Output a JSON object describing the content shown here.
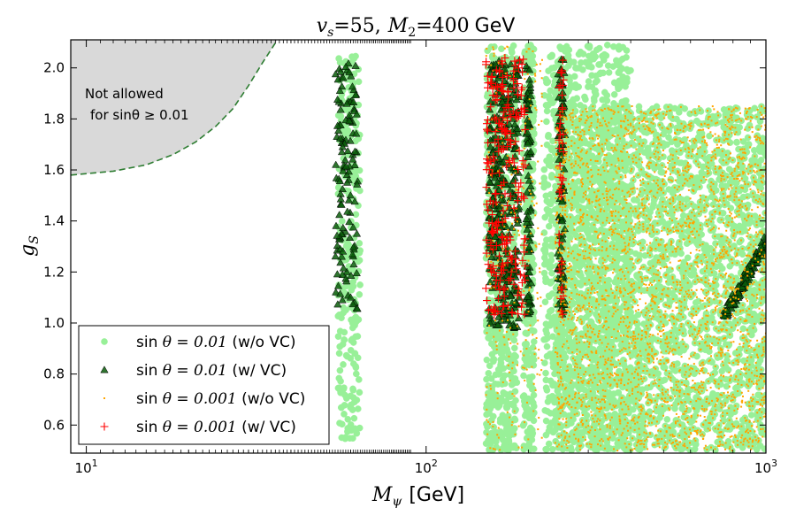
{
  "chart_data": {
    "type": "scatter",
    "title": "v_s = 55,  M_2 = 400 GeV",
    "title_parts": {
      "vs_label": "v",
      "vs_sub": "s",
      "vs_value": "=55,",
      "m2_label": "M",
      "m2_sub": "2",
      "m2_value": "=400",
      "m2_unit": "GeV"
    },
    "xlabel": "M_ψ [GeV]",
    "xlabel_parts": {
      "symbol": "M",
      "sub": "ψ",
      "unit": "[GeV]"
    },
    "ylabel": "g_S",
    "ylabel_parts": {
      "symbol": "g",
      "sub": "S"
    },
    "xscale": "log",
    "xlim": [
      9,
      1000
    ],
    "ylim": [
      0.49,
      2.11
    ],
    "xticks": [
      {
        "value": 10,
        "base": "10",
        "exp": "1"
      },
      {
        "value": 100,
        "base": "10",
        "exp": "2"
      },
      {
        "value": 1000,
        "base": "10",
        "exp": "3"
      }
    ],
    "yticks": [
      0.6,
      0.8,
      1.0,
      1.2,
      1.4,
      1.6,
      1.8,
      2.0
    ],
    "ytick_labels": [
      "0.6",
      "0.8",
      "1.0",
      "1.2",
      "1.4",
      "1.6",
      "1.8",
      "2.0"
    ],
    "excluded_region": {
      "label_line1": "Not allowed",
      "label_line2": "for sinθ ≥ 0.01",
      "boundary_x": [
        9,
        12,
        15,
        18,
        21,
        24,
        27,
        30,
        33,
        36.5
      ],
      "boundary_y": [
        1.58,
        1.595,
        1.62,
        1.66,
        1.71,
        1.77,
        1.84,
        1.93,
        2.02,
        2.11
      ],
      "fill": "#d9d9d9",
      "edge_color": "#2e7d32"
    },
    "series": [
      {
        "name": "sin θ = 0.01 (w/o VC)",
        "marker": "circle",
        "color": "#98f098",
        "clusters": [
          {
            "xmin": 55,
            "xmax": 64,
            "ymin": 0.54,
            "ymax": 2.05,
            "n": 260
          },
          {
            "xmin": 150,
            "xmax": 185,
            "ymin": 0.5,
            "ymax": 2.09,
            "n": 650
          },
          {
            "xmin": 193,
            "xmax": 208,
            "ymin": 0.5,
            "ymax": 2.09,
            "n": 320
          },
          {
            "xmin": 222,
            "xmax": 400,
            "ymin": 0.5,
            "ymax": 2.09,
            "n": 1100
          },
          {
            "xmin": 240,
            "xmax": 1000,
            "ymin": 0.5,
            "ymax": 1.85,
            "n": 2900
          }
        ]
      },
      {
        "name": "sin θ = 0.01 (w/ VC)",
        "marker": "triangle",
        "color": "#0a5d0a",
        "clusters": [
          {
            "xmin": 54,
            "xmax": 63,
            "ymin": 1.05,
            "ymax": 2.04,
            "n": 130
          },
          {
            "xmin": 153,
            "xmax": 188,
            "ymin": 0.98,
            "ymax": 2.04,
            "n": 340
          },
          {
            "xmin": 197,
            "xmax": 204,
            "ymin": 1.02,
            "ymax": 2.04,
            "n": 90
          },
          {
            "xmin": 244,
            "xmax": 256,
            "ymin": 1.02,
            "ymax": 2.04,
            "n": 90
          }
        ],
        "band": {
          "x_start": 750,
          "x_end": 1000,
          "y_start": 1.02,
          "y_end": 1.32,
          "n": 110
        }
      },
      {
        "name": "sin θ = 0.001 (w/o VC)",
        "marker": "dot",
        "color": "#ffa500",
        "clusters": [
          {
            "xmin": 150,
            "xmax": 220,
            "ymin": 0.5,
            "ymax": 2.09,
            "n": 260
          },
          {
            "xmin": 240,
            "xmax": 1000,
            "ymin": 0.5,
            "ymax": 1.85,
            "n": 3200
          }
        ]
      },
      {
        "name": "sin θ = 0.001 (w/ VC)",
        "marker": "plus",
        "color": "#ff0000",
        "clusters": [
          {
            "xmin": 150,
            "xmax": 196,
            "ymin": 1.02,
            "ymax": 2.04,
            "n": 240
          },
          {
            "xmin": 246,
            "xmax": 254,
            "ymin": 1.02,
            "ymax": 2.04,
            "n": 40
          }
        ]
      }
    ],
    "legend": {
      "location": "lower-left",
      "entries": [
        {
          "prefix": "sin",
          "math": "θ = 0.01",
          "suffix": "(w/o VC)",
          "marker": "circle",
          "color": "#98f098"
        },
        {
          "prefix": "sin",
          "math": "θ = 0.01",
          "suffix": "(w/ VC)",
          "marker": "triangle",
          "color": "#0a5d0a"
        },
        {
          "prefix": "sin",
          "math": "θ = 0.001",
          "suffix": "(w/o VC)",
          "marker": "dot",
          "color": "#ffa500"
        },
        {
          "prefix": "sin",
          "math": "θ = 0.001",
          "suffix": "(w/ VC)",
          "marker": "plus",
          "color": "#ff0000"
        }
      ]
    }
  }
}
